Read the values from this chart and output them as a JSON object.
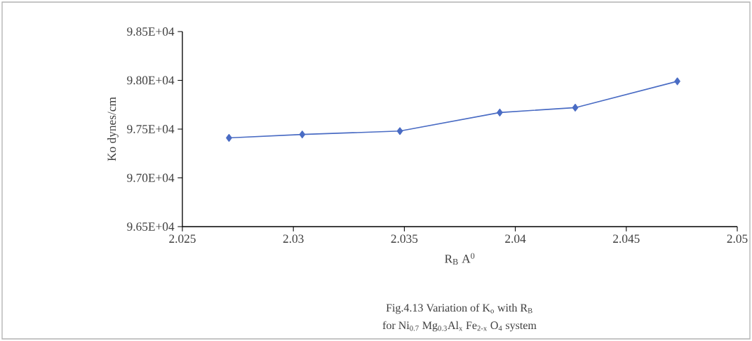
{
  "chart_data": {
    "type": "line",
    "title": "Fig.4.13  Variation of K$_{o}$ with R$_{B}$",
    "subtitle": "for Ni$_{0.7}$ Mg$_{0.3}$Al$_{x}$ Fe$_{2-x}$ O$_{4}$ system",
    "xlabel": "R$_{B}$ A$^{0}$",
    "ylabel": "Ko dynes/cm",
    "x": [
      2.0271,
      2.0304,
      2.0348,
      2.0393,
      2.0427,
      2.0473
    ],
    "series": [
      {
        "color": "#4a6cc4",
        "values": [
          97410,
          97445,
          97480,
          97670,
          97720,
          97990
        ]
      }
    ],
    "xlim": [
      2.025,
      2.05
    ],
    "xticks": [
      2.025,
      2.03,
      2.035,
      2.04,
      2.045,
      2.05
    ],
    "ylim": [
      96500,
      98500
    ],
    "yticks": [
      {
        "value": 96500,
        "label": "9.65E+04"
      },
      {
        "value": 97000,
        "label": "9.70E+04"
      },
      {
        "value": 97500,
        "label": "9.75E+04"
      },
      {
        "value": 98000,
        "label": "9.80E+04"
      },
      {
        "value": 98500,
        "label": "9.85E+04"
      }
    ],
    "grid": false,
    "marker": "diamond",
    "line_style": "solid"
  }
}
